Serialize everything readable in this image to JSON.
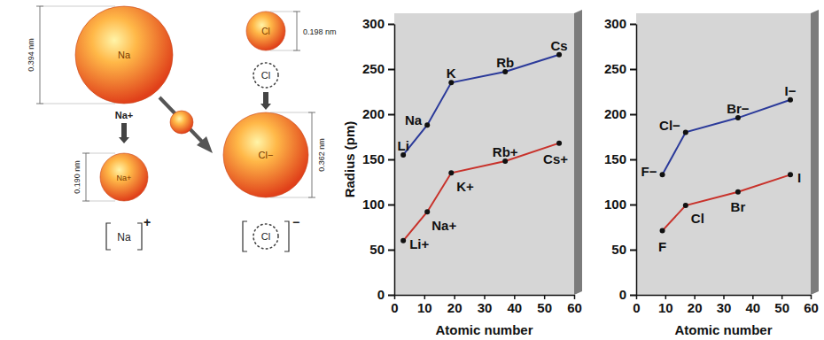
{
  "diagram": {
    "sodium": {
      "atom": "Na",
      "atom_size": "0.394 nm",
      "ion": "Na+",
      "ion_size": "0.190 nm",
      "bracket_symbol": "Na",
      "bracket_charge": "+"
    },
    "chlorine": {
      "atom": "Cl",
      "atom_size": "0.198 nm",
      "lewis": "Cl",
      "ion": "Cl−",
      "ion_size": "0.362 nm",
      "bracket_symbol": "Cl",
      "bracket_charge": "−"
    }
  },
  "chart_data": [
    {
      "type": "line",
      "x_label": "Atomic number",
      "y_label": "Radius (pm)",
      "x": [
        3,
        11,
        19,
        37,
        55
      ],
      "xlim": [
        0,
        60
      ],
      "xticks": [
        0,
        10,
        20,
        30,
        40,
        50,
        60
      ],
      "ylim": [
        0,
        300
      ],
      "yticks": [
        0,
        50,
        100,
        150,
        200,
        250,
        300
      ],
      "series": [
        {
          "color": "#2b3a9a",
          "marker": "circle",
          "labels": [
            "Li",
            "Na",
            "K",
            "Rb",
            "Cs"
          ],
          "values": [
            155,
            188,
            235,
            247,
            266
          ]
        },
        {
          "color": "#c8322b",
          "marker": "circle",
          "labels": [
            "Li+",
            "Na+",
            "K+",
            "Rb+",
            "Cs+"
          ],
          "values": [
            60,
            92,
            135,
            148,
            168
          ]
        }
      ]
    },
    {
      "type": "line",
      "x_label": "Atomic number",
      "x": [
        9,
        17,
        35,
        53
      ],
      "xlim": [
        0,
        60
      ],
      "xticks": [
        0,
        10,
        20,
        30,
        40,
        50,
        60
      ],
      "ylim": [
        0,
        300
      ],
      "yticks": [
        0,
        50,
        100,
        150,
        200,
        250,
        300
      ],
      "series": [
        {
          "color": "#2b3a9a",
          "marker": "circle",
          "labels": [
            "F−",
            "Cl−",
            "Br−",
            "I−"
          ],
          "values": [
            133,
            180,
            196,
            216
          ]
        },
        {
          "color": "#c8322b",
          "marker": "circle",
          "labels": [
            "F",
            "Cl",
            "Br",
            "I"
          ],
          "values": [
            71,
            99,
            114,
            133
          ]
        }
      ]
    }
  ]
}
